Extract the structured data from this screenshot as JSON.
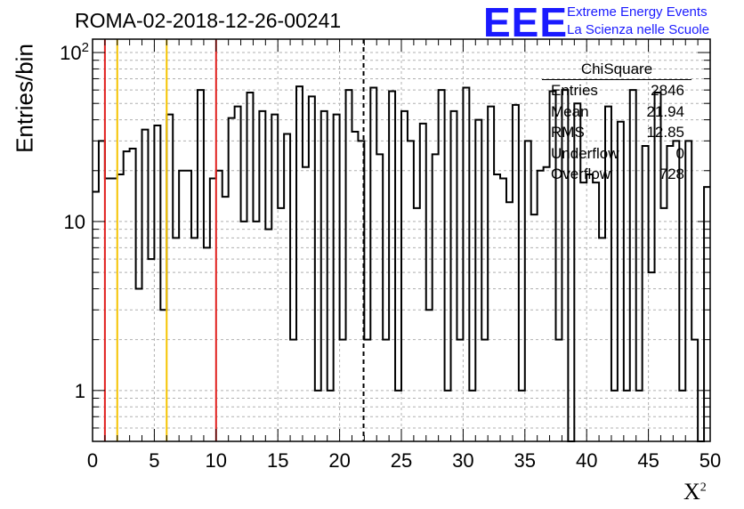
{
  "header": {
    "title": "ROMA-02-2018-12-26-00241",
    "logo_text": "EEE",
    "logo_line1": "Extreme Energy Events",
    "logo_line2": "La Scienza nelle Scuole"
  },
  "stats_box": {
    "title": "ChiSquare",
    "rows": [
      {
        "label": "Entries",
        "value": "2846"
      },
      {
        "label": "Mean",
        "value": "21.94"
      },
      {
        "label": "RMS",
        "value": "12.85"
      },
      {
        "label": "Underflow",
        "value": "0"
      },
      {
        "label": "Overflow",
        "value": "728"
      }
    ]
  },
  "colors": {
    "red_line": "#e0201e",
    "yellow_line": "#f5c400",
    "grid": "#b0b0b0",
    "logo": "#1a1aff"
  },
  "chart_data": {
    "type": "histogram",
    "xlabel": "X",
    "xlabel_sup": "2",
    "ylabel": "Entries/bin",
    "xlim": [
      0,
      50
    ],
    "ylim": [
      0.5,
      120
    ],
    "yscale": "log",
    "grid": true,
    "x_ticks": [
      "0",
      "5",
      "10",
      "15",
      "20",
      "25",
      "30",
      "35",
      "40",
      "45",
      "50"
    ],
    "y_ticks": [
      {
        "value": 1,
        "label": "1"
      },
      {
        "value": 10,
        "label": "10"
      },
      {
        "value": 100,
        "label": "10",
        "sup": "2"
      }
    ],
    "bin_width": 0.5,
    "bin_values": [
      15,
      30,
      18,
      18,
      19,
      26,
      27,
      4,
      35,
      6,
      37,
      3,
      43,
      8,
      20,
      20,
      8,
      60,
      7,
      18,
      20,
      14,
      41,
      48,
      10,
      58,
      10,
      45,
      9,
      43,
      12,
      33,
      2,
      63,
      21,
      55,
      1,
      45,
      1,
      43,
      2,
      60,
      34,
      30,
      2,
      62,
      25,
      2,
      59,
      1,
      45,
      30,
      12,
      38,
      3,
      25,
      60,
      1,
      45,
      2,
      62,
      1,
      40,
      2,
      48,
      19,
      18,
      13,
      49,
      1,
      30,
      11,
      20,
      21,
      59,
      2,
      60,
      0.4,
      50,
      17,
      19,
      17,
      8,
      48,
      1,
      39,
      1,
      60,
      1,
      28,
      5,
      58,
      12,
      28,
      30,
      1,
      30,
      2,
      0.4,
      16
    ],
    "vertical_lines": [
      {
        "x": 1,
        "color": "red",
        "style": "solid"
      },
      {
        "x": 2,
        "color": "yellow",
        "style": "solid"
      },
      {
        "x": 6,
        "color": "yellow",
        "style": "solid"
      },
      {
        "x": 10,
        "color": "red",
        "style": "solid"
      },
      {
        "x": 21.94,
        "color": "black",
        "style": "dashed"
      }
    ]
  }
}
